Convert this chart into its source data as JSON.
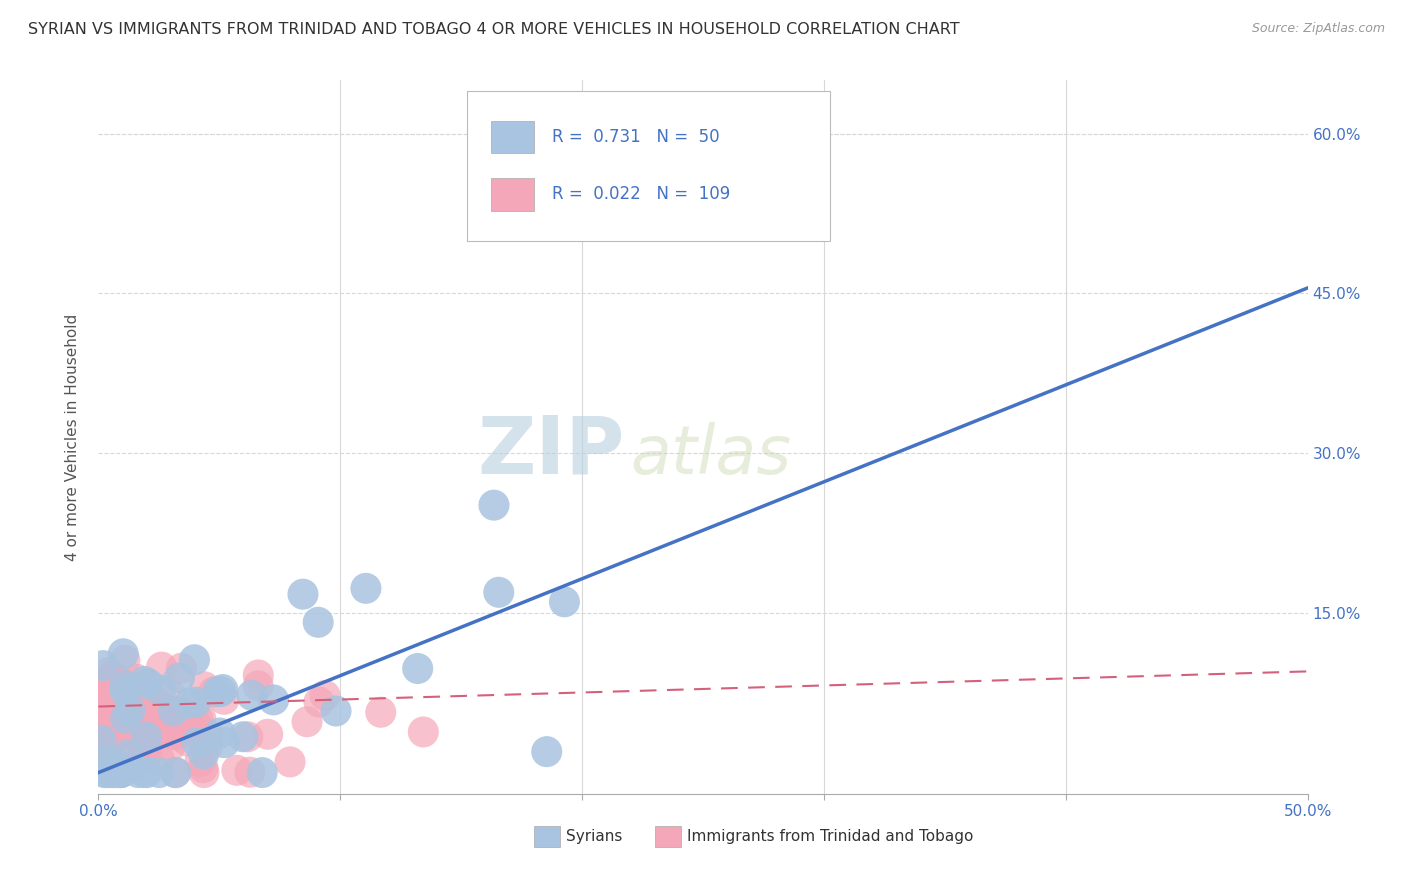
{
  "title": "SYRIAN VS IMMIGRANTS FROM TRINIDAD AND TOBAGO 4 OR MORE VEHICLES IN HOUSEHOLD CORRELATION CHART",
  "source": "Source: ZipAtlas.com",
  "ylabel": "4 or more Vehicles in Household",
  "legend_label1": "Syrians",
  "legend_label2": "Immigrants from Trinidad and Tobago",
  "R1": 0.731,
  "N1": 50,
  "R2": 0.022,
  "N2": 109,
  "xlim": [
    0.0,
    0.5
  ],
  "ylim": [
    -0.02,
    0.65
  ],
  "xticks": [
    0.0,
    0.1,
    0.2,
    0.3,
    0.4,
    0.5
  ],
  "xtick_labels": [
    "0.0%",
    "",
    "",
    "",
    "",
    "50.0%"
  ],
  "ytick_positions": [
    0.15,
    0.3,
    0.45,
    0.6
  ],
  "ytick_labels": [
    "15.0%",
    "30.0%",
    "45.0%",
    "60.0%"
  ],
  "color1": "#a8c4e0",
  "color1_line": "#4472c4",
  "color2": "#f4a7b9",
  "color2_line": "#d4607a",
  "watermark_zip": "ZIP",
  "watermark_atlas": "atlas",
  "background_color": "#ffffff",
  "grid_color": "#d8d8d8",
  "seed1": 42,
  "seed2": 99,
  "scatter_size": 500,
  "blue_line_x": [
    0.0,
    0.5
  ],
  "blue_line_y": [
    0.0,
    0.455
  ],
  "pink_line_x": [
    0.0,
    0.5
  ],
  "pink_line_y": [
    0.062,
    0.095
  ]
}
